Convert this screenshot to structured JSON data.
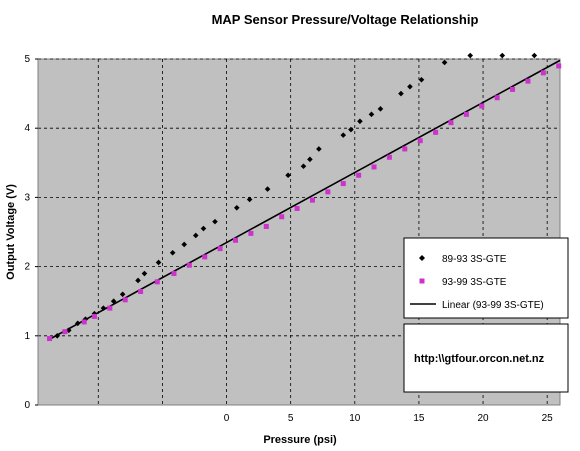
{
  "chart_data": {
    "type": "scatter",
    "title": "MAP Sensor Pressure/Voltage Relationship",
    "xlabel": "Pressure (psi)",
    "ylabel": "Output Voltage (V)",
    "xlim": [
      -14.7,
      26
    ],
    "ylim": [
      0,
      5
    ],
    "x_ticks": [
      "0",
      "5",
      "10",
      "15",
      "20",
      "25"
    ],
    "x_tick_values": [
      0,
      5,
      10,
      15,
      20,
      25
    ],
    "y_ticks": [
      "0",
      "1",
      "2",
      "3",
      "4",
      "5"
    ],
    "y_tick_values": [
      0,
      1,
      2,
      3,
      4,
      5
    ],
    "x_gridlines": [
      -10,
      -5,
      0,
      5,
      10,
      15,
      20,
      25
    ],
    "grid": true,
    "legend_position": "right",
    "annotation": "http:\\\\gtfour.orcon.net.nz",
    "colors": {
      "plot_background": "#c0c0c0",
      "series_89_93": "#000000",
      "series_93_99": "#cc33cc",
      "linear": "#000000"
    },
    "series": [
      {
        "name": "89-93 3S-GTE",
        "marker": "diamond",
        "x": [
          -13.2,
          -12.3,
          -11.6,
          -11.0,
          -10.3,
          -9.6,
          -8.8,
          -8.1,
          -6.9,
          -6.4,
          -5.3,
          -4.2,
          -3.3,
          -2.4,
          -1.8,
          -0.9,
          0.8,
          1.8,
          3.2,
          4.8,
          6.0,
          6.5,
          7.2,
          9.1,
          9.7,
          10.4,
          11.3,
          12.0,
          13.6,
          14.3,
          15.2,
          17.0,
          19.0,
          21.5,
          24.0
        ],
        "y": [
          1.0,
          1.08,
          1.18,
          1.24,
          1.32,
          1.4,
          1.5,
          1.6,
          1.8,
          1.9,
          2.06,
          2.2,
          2.32,
          2.45,
          2.55,
          2.65,
          2.85,
          2.97,
          3.12,
          3.32,
          3.45,
          3.55,
          3.7,
          3.9,
          3.98,
          4.1,
          4.2,
          4.28,
          4.5,
          4.6,
          4.7,
          4.95,
          5.05,
          5.05,
          5.05
        ]
      },
      {
        "name": "93-99 3S-GTE",
        "marker": "square",
        "x": [
          -13.8,
          -12.6,
          -11.1,
          -10.3,
          -9.1,
          -7.9,
          -6.7,
          -5.4,
          -4.1,
          -2.9,
          -1.7,
          -0.5,
          0.7,
          1.9,
          3.1,
          4.3,
          5.5,
          6.7,
          7.9,
          9.1,
          10.3,
          11.5,
          12.7,
          13.9,
          15.1,
          16.3,
          17.5,
          18.7,
          19.9,
          21.1,
          22.3,
          23.5,
          24.7,
          25.9
        ],
        "y": [
          0.96,
          1.06,
          1.2,
          1.28,
          1.4,
          1.52,
          1.64,
          1.78,
          1.9,
          2.02,
          2.14,
          2.26,
          2.38,
          2.48,
          2.58,
          2.72,
          2.84,
          2.96,
          3.08,
          3.2,
          3.32,
          3.44,
          3.58,
          3.7,
          3.82,
          3.94,
          4.08,
          4.2,
          4.32,
          4.44,
          4.56,
          4.68,
          4.8,
          4.9
        ]
      },
      {
        "name": "Linear (93-99 3S-GTE)",
        "marker": "line",
        "x": [
          -13.8,
          26
        ],
        "y": [
          0.95,
          4.98
        ]
      }
    ]
  }
}
